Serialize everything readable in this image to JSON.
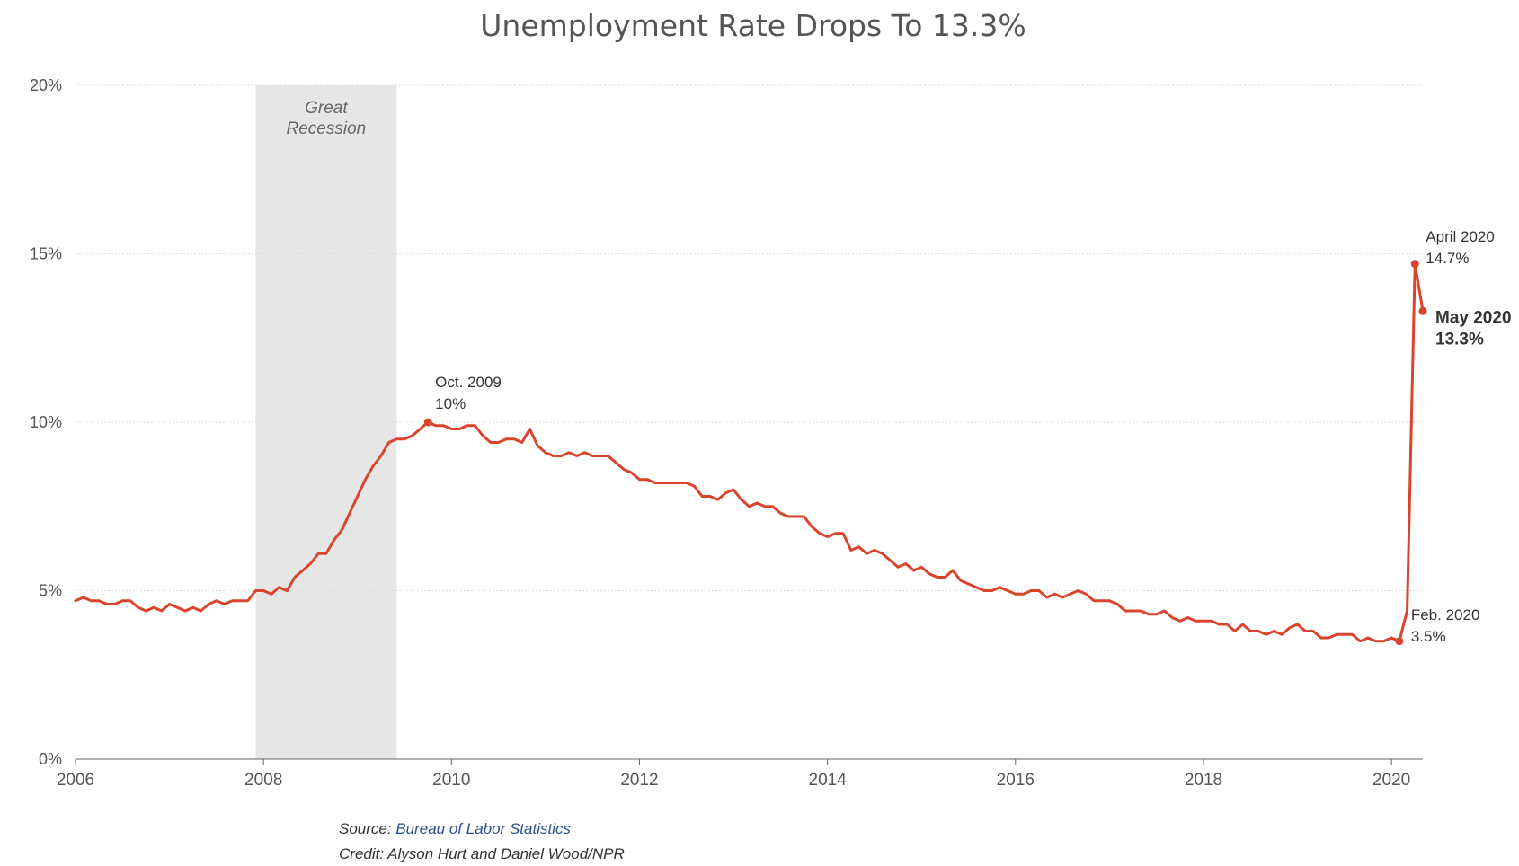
{
  "chart_data": {
    "type": "line",
    "title": "Unemployment Rate Drops To 13.3%",
    "xlabel": "",
    "ylabel": "",
    "x_start": "2006-01",
    "x_tick_labels": [
      "2006",
      "2008",
      "2010",
      "2012",
      "2014",
      "2016",
      "2018",
      "2020"
    ],
    "y_tick_labels": [
      "0%",
      "5%",
      "10%",
      "15%",
      "20%"
    ],
    "ylim": [
      0,
      20
    ],
    "xlim": [
      "2006-01",
      "2020-05"
    ],
    "grid": true,
    "line_color": "#d9452c",
    "shade_color": "#e6e6e6",
    "series": [
      {
        "name": "",
        "values": [
          4.7,
          4.8,
          4.7,
          4.7,
          4.6,
          4.6,
          4.7,
          4.7,
          4.5,
          4.4,
          4.5,
          4.4,
          4.6,
          4.5,
          4.4,
          4.5,
          4.4,
          4.6,
          4.7,
          4.6,
          4.7,
          4.7,
          4.7,
          5.0,
          5.0,
          4.9,
          5.1,
          5.0,
          5.4,
          5.6,
          5.8,
          6.1,
          6.1,
          6.5,
          6.8,
          7.3,
          7.8,
          8.3,
          8.7,
          9.0,
          9.4,
          9.5,
          9.5,
          9.6,
          9.8,
          10.0,
          9.9,
          9.9,
          9.8,
          9.8,
          9.9,
          9.9,
          9.6,
          9.4,
          9.4,
          9.5,
          9.5,
          9.4,
          9.8,
          9.3,
          9.1,
          9.0,
          9.0,
          9.1,
          9.0,
          9.1,
          9.0,
          9.0,
          9.0,
          8.8,
          8.6,
          8.5,
          8.3,
          8.3,
          8.2,
          8.2,
          8.2,
          8.2,
          8.2,
          8.1,
          7.8,
          7.8,
          7.7,
          7.9,
          8.0,
          7.7,
          7.5,
          7.6,
          7.5,
          7.5,
          7.3,
          7.2,
          7.2,
          7.2,
          6.9,
          6.7,
          6.6,
          6.7,
          6.7,
          6.2,
          6.3,
          6.1,
          6.2,
          6.1,
          5.9,
          5.7,
          5.8,
          5.6,
          5.7,
          5.5,
          5.4,
          5.4,
          5.6,
          5.3,
          5.2,
          5.1,
          5.0,
          5.0,
          5.1,
          5.0,
          4.9,
          4.9,
          5.0,
          5.0,
          4.8,
          4.9,
          4.8,
          4.9,
          5.0,
          4.9,
          4.7,
          4.7,
          4.7,
          4.6,
          4.4,
          4.4,
          4.4,
          4.3,
          4.3,
          4.4,
          4.2,
          4.1,
          4.2,
          4.1,
          4.1,
          4.1,
          4.0,
          4.0,
          3.8,
          4.0,
          3.8,
          3.8,
          3.7,
          3.8,
          3.7,
          3.9,
          4.0,
          3.8,
          3.8,
          3.6,
          3.6,
          3.7,
          3.7,
          3.7,
          3.5,
          3.6,
          3.5,
          3.5,
          3.6,
          3.5,
          4.4,
          14.7,
          13.3
        ]
      }
    ],
    "shaded_region": {
      "label_lines": [
        "Great",
        "Recession"
      ],
      "start": "2007-12",
      "end": "2009-06"
    },
    "annotations": [
      {
        "date": "2009-10",
        "value": 10.0,
        "lines": [
          "Oct. 2009",
          "10%"
        ],
        "emphasis": false
      },
      {
        "date": "2020-02",
        "value": 3.5,
        "lines": [
          "Feb. 2020",
          "3.5%"
        ],
        "emphasis": false
      },
      {
        "date": "2020-04",
        "value": 14.7,
        "lines": [
          "April 2020",
          "14.7%"
        ],
        "emphasis": false
      },
      {
        "date": "2020-05",
        "value": 13.3,
        "lines": [
          "May 2020",
          "13.3%"
        ],
        "emphasis": true
      }
    ]
  },
  "footer": {
    "source_prefix": "Source: ",
    "source_link": "Bureau of Labor Statistics",
    "credit": "Credit: Alyson Hurt and Daniel Wood/NPR"
  }
}
